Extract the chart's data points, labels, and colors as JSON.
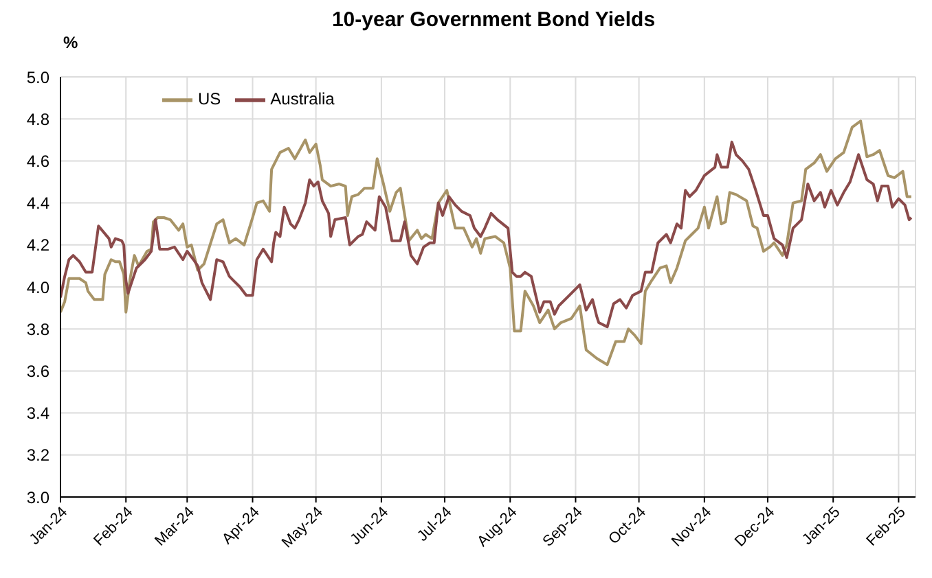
{
  "chart_data": {
    "type": "line",
    "title": "10-year Government Bond Yields",
    "ylabel": "%",
    "xlim": [
      "2024-01-01",
      "2025-02-09"
    ],
    "xticks": [
      {
        "value": "2024-01",
        "label": "Jan-24"
      },
      {
        "value": "2024-02",
        "label": "Feb-24"
      },
      {
        "value": "2024-03",
        "label": "Mar-24"
      },
      {
        "value": "2024-04",
        "label": "Apr-24"
      },
      {
        "value": "2024-05",
        "label": "May-24"
      },
      {
        "value": "2024-06",
        "label": "Jun-24"
      },
      {
        "value": "2024-07",
        "label": "Jul-24"
      },
      {
        "value": "2024-08",
        "label": "Aug-24"
      },
      {
        "value": "2024-09",
        "label": "Sep-24"
      },
      {
        "value": "2024-10",
        "label": "Oct-24"
      },
      {
        "value": "2024-11",
        "label": "Nov-24"
      },
      {
        "value": "2024-12",
        "label": "Dec-24"
      },
      {
        "value": "2025-01",
        "label": "Jan-25"
      },
      {
        "value": "2025-02",
        "label": "Feb-25"
      }
    ],
    "ylim": [
      3.0,
      5.0
    ],
    "yticks": [
      {
        "value": 3,
        "label": "3.0"
      },
      {
        "value": 3.2,
        "label": "3.2"
      },
      {
        "value": 3.4,
        "label": "3.4"
      },
      {
        "value": 3.6,
        "label": "3.6"
      },
      {
        "value": 3.8,
        "label": "3.8"
      },
      {
        "value": 4,
        "label": "4.0"
      },
      {
        "value": 4.2,
        "label": "4.2"
      },
      {
        "value": 4.4,
        "label": "4.4"
      },
      {
        "value": 4.6,
        "label": "4.6"
      },
      {
        "value": 4.8,
        "label": "4.8"
      },
      {
        "value": 5,
        "label": "5.0"
      }
    ],
    "grid": true,
    "legend": "top left",
    "marker": "none",
    "line_style": "solid",
    "series": [
      {
        "name": "US",
        "color": "#a89467",
        "x": [
          "2024-01-01",
          "2024-01-03",
          "2024-01-05",
          "2024-01-10",
          "2024-01-13",
          "2024-01-14",
          "2024-01-17",
          "2024-01-21",
          "2024-01-22",
          "2024-01-25",
          "2024-01-27",
          "2024-01-29",
          "2024-01-31",
          "2024-02-01",
          "2024-02-03",
          "2024-02-05",
          "2024-02-07",
          "2024-02-11",
          "2024-02-13",
          "2024-02-14",
          "2024-02-16",
          "2024-02-19",
          "2024-02-22",
          "2024-02-26",
          "2024-02-28",
          "2024-03-01",
          "2024-03-03",
          "2024-03-06",
          "2024-03-09",
          "2024-03-15",
          "2024-03-18",
          "2024-03-21",
          "2024-03-24",
          "2024-03-28",
          "2024-04-01",
          "2024-04-03",
          "2024-04-06",
          "2024-04-09",
          "2024-04-10",
          "2024-04-14",
          "2024-04-18",
          "2024-04-21",
          "2024-04-26",
          "2024-04-28",
          "2024-05-01",
          "2024-05-03",
          "2024-05-04",
          "2024-05-08",
          "2024-05-12",
          "2024-05-15",
          "2024-05-16",
          "2024-05-18",
          "2024-05-21",
          "2024-05-24",
          "2024-05-28",
          "2024-05-30",
          "2024-06-02",
          "2024-06-05",
          "2024-06-08",
          "2024-06-10",
          "2024-06-14",
          "2024-06-18",
          "2024-06-20",
          "2024-06-22",
          "2024-06-25",
          "2024-06-28",
          "2024-07-02",
          "2024-07-06",
          "2024-07-10",
          "2024-07-14",
          "2024-07-16",
          "2024-07-18",
          "2024-07-20",
          "2024-07-25",
          "2024-07-29",
          "2024-08-01",
          "2024-08-03",
          "2024-08-06",
          "2024-08-08",
          "2024-08-12",
          "2024-08-15",
          "2024-08-19",
          "2024-08-22",
          "2024-08-25",
          "2024-08-30",
          "2024-09-03",
          "2024-09-06",
          "2024-09-11",
          "2024-09-16",
          "2024-09-20",
          "2024-09-24",
          "2024-09-26",
          "2024-09-29",
          "2024-10-02",
          "2024-10-04",
          "2024-10-07",
          "2024-10-11",
          "2024-10-14",
          "2024-10-16",
          "2024-10-19",
          "2024-10-23",
          "2024-10-26",
          "2024-10-29",
          "2024-11-01",
          "2024-11-03",
          "2024-11-07",
          "2024-11-09",
          "2024-11-11",
          "2024-11-13",
          "2024-11-16",
          "2024-11-21",
          "2024-11-24",
          "2024-11-26",
          "2024-11-29",
          "2024-12-02",
          "2024-12-04",
          "2024-12-08",
          "2024-12-10",
          "2024-12-13",
          "2024-12-17",
          "2024-12-19",
          "2024-12-23",
          "2024-12-26",
          "2024-12-29",
          "2025-01-02",
          "2025-01-06",
          "2025-01-10",
          "2025-01-14",
          "2025-01-17",
          "2025-01-20",
          "2025-01-23",
          "2025-01-27",
          "2025-01-30",
          "2025-02-03",
          "2025-02-05",
          "2025-02-07"
        ],
        "values": [
          3.88,
          3.93,
          4.04,
          4.04,
          4.02,
          3.98,
          3.94,
          3.94,
          4.06,
          4.13,
          4.12,
          4.12,
          4.06,
          3.88,
          4.04,
          4.15,
          4.1,
          4.17,
          4.18,
          4.31,
          4.33,
          4.33,
          4.32,
          4.27,
          4.3,
          4.19,
          4.2,
          4.08,
          4.11,
          4.3,
          4.32,
          4.21,
          4.23,
          4.2,
          4.33,
          4.4,
          4.41,
          4.36,
          4.56,
          4.64,
          4.66,
          4.61,
          4.7,
          4.64,
          4.68,
          4.58,
          4.51,
          4.48,
          4.49,
          4.48,
          4.34,
          4.43,
          4.44,
          4.47,
          4.47,
          4.61,
          4.49,
          4.36,
          4.45,
          4.47,
          4.22,
          4.27,
          4.23,
          4.25,
          4.23,
          4.4,
          4.46,
          4.28,
          4.28,
          4.19,
          4.23,
          4.16,
          4.23,
          4.24,
          4.21,
          4.09,
          3.79,
          3.79,
          3.98,
          3.91,
          3.83,
          3.89,
          3.8,
          3.83,
          3.85,
          3.91,
          3.7,
          3.66,
          3.63,
          3.74,
          3.74,
          3.8,
          3.77,
          3.73,
          3.98,
          4.03,
          4.09,
          4.1,
          4.02,
          4.09,
          4.22,
          4.25,
          4.28,
          4.38,
          4.28,
          4.43,
          4.3,
          4.31,
          4.45,
          4.44,
          4.41,
          4.29,
          4.28,
          4.17,
          4.19,
          4.21,
          4.15,
          4.2,
          4.4,
          4.41,
          4.56,
          4.59,
          4.63,
          4.55,
          4.61,
          4.64,
          4.76,
          4.79,
          4.62,
          4.63,
          4.65,
          4.53,
          4.52,
          4.55,
          4.43,
          4.43
        ]
      },
      {
        "name": "Australia",
        "color": "#8b4a4a",
        "x": [
          "2024-01-01",
          "2024-01-03",
          "2024-01-05",
          "2024-01-07",
          "2024-01-10",
          "2024-01-13",
          "2024-01-16",
          "2024-01-19",
          "2024-01-24",
          "2024-01-25",
          "2024-01-27",
          "2024-01-30",
          "2024-01-31",
          "2024-02-01",
          "2024-02-02",
          "2024-02-06",
          "2024-02-10",
          "2024-02-13",
          "2024-02-15",
          "2024-02-17",
          "2024-02-21",
          "2024-02-24",
          "2024-02-26",
          "2024-02-28",
          "2024-03-01",
          "2024-03-04",
          "2024-03-06",
          "2024-03-08",
          "2024-03-10",
          "2024-03-12",
          "2024-03-15",
          "2024-03-18",
          "2024-03-21",
          "2024-03-23",
          "2024-03-26",
          "2024-03-29",
          "2024-04-01",
          "2024-04-03",
          "2024-04-06",
          "2024-04-10",
          "2024-04-11",
          "2024-04-12",
          "2024-04-14",
          "2024-04-16",
          "2024-04-19",
          "2024-04-21",
          "2024-04-23",
          "2024-04-26",
          "2024-04-28",
          "2024-04-30",
          "2024-05-02",
          "2024-05-04",
          "2024-05-07",
          "2024-05-08",
          "2024-05-10",
          "2024-05-15",
          "2024-05-17",
          "2024-05-21",
          "2024-05-23",
          "2024-05-25",
          "2024-05-29",
          "2024-05-31",
          "2024-06-03",
          "2024-06-06",
          "2024-06-10",
          "2024-06-12",
          "2024-06-15",
          "2024-06-18",
          "2024-06-21",
          "2024-06-24",
          "2024-06-26",
          "2024-06-28",
          "2024-06-30",
          "2024-07-03",
          "2024-07-06",
          "2024-07-09",
          "2024-07-13",
          "2024-07-15",
          "2024-07-18",
          "2024-07-20",
          "2024-07-23",
          "2024-07-26",
          "2024-07-31",
          "2024-08-02",
          "2024-08-04",
          "2024-08-06",
          "2024-08-08",
          "2024-08-11",
          "2024-08-15",
          "2024-08-17",
          "2024-08-20",
          "2024-08-22",
          "2024-08-24",
          "2024-08-28",
          "2024-08-31",
          "2024-09-03",
          "2024-09-06",
          "2024-09-09",
          "2024-09-11",
          "2024-09-12",
          "2024-09-16",
          "2024-09-19",
          "2024-09-22",
          "2024-09-25",
          "2024-09-28",
          "2024-10-02",
          "2024-10-04",
          "2024-10-07",
          "2024-10-10",
          "2024-10-14",
          "2024-10-16",
          "2024-10-19",
          "2024-10-21",
          "2024-10-23",
          "2024-10-25",
          "2024-10-28",
          "2024-11-01",
          "2024-11-06",
          "2024-11-07",
          "2024-11-09",
          "2024-11-12",
          "2024-11-14",
          "2024-11-16",
          "2024-11-19",
          "2024-11-22",
          "2024-11-25",
          "2024-11-29",
          "2024-12-01",
          "2024-12-04",
          "2024-12-08",
          "2024-12-10",
          "2024-12-13",
          "2024-12-17",
          "2024-12-20",
          "2024-12-23",
          "2024-12-26",
          "2024-12-28",
          "2024-12-31",
          "2025-01-03",
          "2025-01-06",
          "2025-01-09",
          "2025-01-13",
          "2025-01-17",
          "2025-01-20",
          "2025-01-22",
          "2025-01-24",
          "2025-01-27",
          "2025-01-29",
          "2025-02-01",
          "2025-02-04",
          "2025-02-06",
          "2025-02-07"
        ],
        "values": [
          3.95,
          4.05,
          4.13,
          4.15,
          4.12,
          4.07,
          4.07,
          4.29,
          4.23,
          4.19,
          4.23,
          4.22,
          4.2,
          4.03,
          3.97,
          4.09,
          4.13,
          4.17,
          4.32,
          4.18,
          4.18,
          4.19,
          4.16,
          4.13,
          4.17,
          4.13,
          4.1,
          4.02,
          3.98,
          3.94,
          4.13,
          4.12,
          4.05,
          4.03,
          4.0,
          3.96,
          3.96,
          4.13,
          4.18,
          4.12,
          4.21,
          4.26,
          4.24,
          4.38,
          4.3,
          4.28,
          4.32,
          4.4,
          4.51,
          4.48,
          4.5,
          4.41,
          4.35,
          4.24,
          4.32,
          4.33,
          4.2,
          4.24,
          4.25,
          4.31,
          4.27,
          4.43,
          4.38,
          4.22,
          4.22,
          4.31,
          4.15,
          4.11,
          4.19,
          4.21,
          4.21,
          4.4,
          4.34,
          4.43,
          4.39,
          4.36,
          4.34,
          4.28,
          4.24,
          4.28,
          4.35,
          4.32,
          4.28,
          4.07,
          4.05,
          4.05,
          4.07,
          4.05,
          3.88,
          3.93,
          3.93,
          3.87,
          3.91,
          3.95,
          3.98,
          4.01,
          3.89,
          3.94,
          3.86,
          3.83,
          3.81,
          3.92,
          3.94,
          3.9,
          3.96,
          3.98,
          4.07,
          4.07,
          4.21,
          4.25,
          4.21,
          4.3,
          4.28,
          4.46,
          4.43,
          4.46,
          4.53,
          4.57,
          4.63,
          4.57,
          4.57,
          4.69,
          4.63,
          4.6,
          4.56,
          4.47,
          4.34,
          4.34,
          4.23,
          4.2,
          4.14,
          4.28,
          4.32,
          4.49,
          4.41,
          4.45,
          4.38,
          4.46,
          4.39,
          4.45,
          4.5,
          4.63,
          4.51,
          4.49,
          4.41,
          4.48,
          4.48,
          4.38,
          4.42,
          4.39,
          4.32,
          4.33
        ]
      }
    ]
  }
}
